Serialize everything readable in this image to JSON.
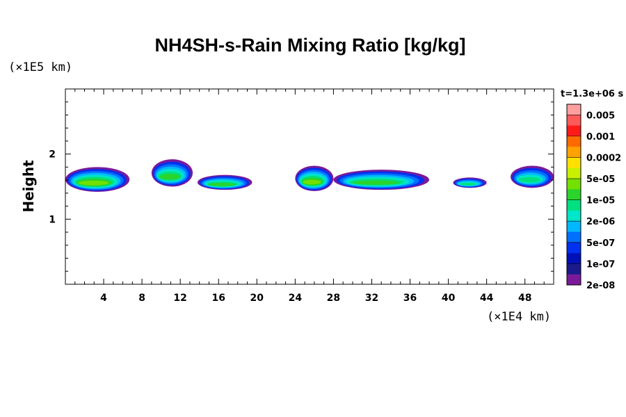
{
  "chart_data": {
    "type": "heatmap",
    "title": "NH4SH-s-Rain Mixing Ratio [kg/kg]",
    "ylabel": "Height",
    "x_unit": "(×1E4 km)",
    "y_unit": "(×1E5 km)",
    "time_label": "t=1.3e+06 s",
    "xlim": [
      0,
      51
    ],
    "ylim": [
      0,
      3
    ],
    "x_ticks": [
      "4",
      "8",
      "12",
      "16",
      "20",
      "24",
      "28",
      "32",
      "36",
      "40",
      "44",
      "48"
    ],
    "x_tick_values": [
      4,
      8,
      12,
      16,
      20,
      24,
      28,
      32,
      36,
      40,
      44,
      48
    ],
    "y_ticks": [
      "1",
      "2"
    ],
    "y_tick_values": [
      1,
      2
    ],
    "colorbar": {
      "labels": [
        "0.005",
        "0.001",
        "0.0002",
        "5e-05",
        "1e-05",
        "2e-06",
        "5e-07",
        "1e-07",
        "2e-08"
      ],
      "colors": [
        "#ff9f9f",
        "#ff5a5a",
        "#ff1a1a",
        "#ff6a00",
        "#ffa200",
        "#ffe000",
        "#c8f000",
        "#74e000",
        "#2ad42a",
        "#00e080",
        "#00e6c8",
        "#00b8ff",
        "#0070ff",
        "#0030f0",
        "#0010b8",
        "#1a1a8c",
        "#7a1a9a"
      ]
    },
    "clouds": [
      {
        "x0": 0,
        "x1": 6.7,
        "base": 1.42,
        "top": 1.8,
        "peak": 2e-05
      },
      {
        "x0": 9,
        "x1": 13.3,
        "base": 1.5,
        "top": 1.92,
        "peak": 1e-05
      },
      {
        "x0": 13.8,
        "x1": 19.5,
        "base": 1.45,
        "top": 1.68,
        "peak": 1e-05
      },
      {
        "x0": 24,
        "x1": 28,
        "base": 1.43,
        "top": 1.82,
        "peak": 2e-05
      },
      {
        "x0": 28,
        "x1": 38,
        "base": 1.45,
        "top": 1.76,
        "peak": 1e-05
      },
      {
        "x0": 40.5,
        "x1": 44,
        "base": 1.48,
        "top": 1.64,
        "peak": 5e-06
      },
      {
        "x0": 46.5,
        "x1": 51,
        "base": 1.48,
        "top": 1.82,
        "peak": 5e-06
      }
    ]
  }
}
